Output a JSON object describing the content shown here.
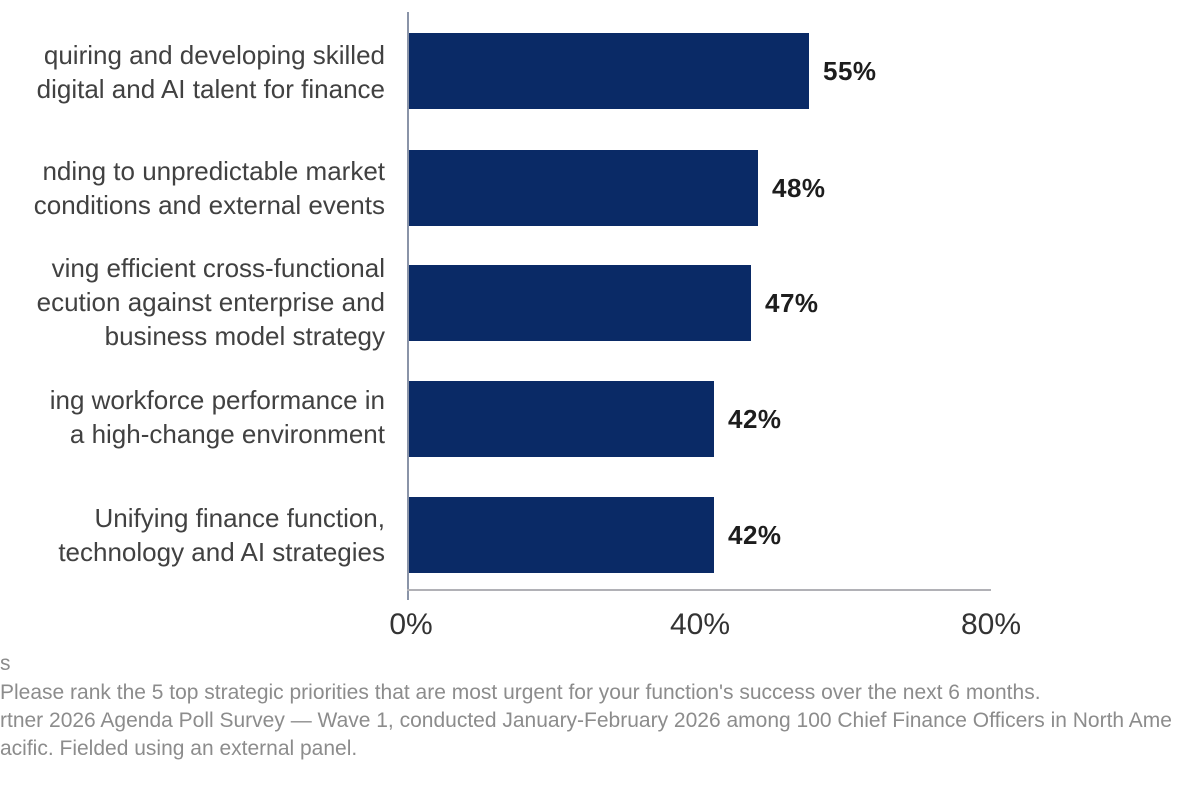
{
  "chart_data": {
    "type": "bar",
    "orientation": "horizontal",
    "title": "",
    "categories": [
      [
        "quiring and developing skilled",
        "digital and AI talent for finance"
      ],
      [
        "nding to unpredictable market",
        "conditions and external events"
      ],
      [
        "ving efficient cross-functional",
        "ecution against enterprise and",
        "business model strategy"
      ],
      [
        "ing workforce performance in",
        "a high-change environment"
      ],
      [
        "Unifying finance function,",
        "technology and AI strategies"
      ]
    ],
    "values": [
      55,
      48,
      47,
      42,
      42
    ],
    "value_labels": [
      "55%",
      "48%",
      "47%",
      "42%",
      "42%"
    ],
    "xlim": [
      0,
      80
    ],
    "x_tick_labels": [
      "0%",
      "40%",
      "80%"
    ],
    "x_tick_values": [
      0,
      40,
      80
    ],
    "grid": false,
    "legend": false,
    "bar_color": "#0a2a66",
    "axis_line_color": "#8a94a8",
    "baseline_color": "#b1b1b6",
    "value_label_color": "#1d1d1d",
    "category_label_color": "#414141",
    "footnote_color": "#8c8c8c"
  },
  "footnotes": {
    "line1": "s",
    "line2": "Please rank the 5 top strategic priorities that are most urgent for your function's success over the next 6 months.",
    "line3": "rtner 2026 Agenda Poll Survey — Wave 1, conducted January-February 2026 among 100 Chief Finance Officers in North Ame",
    "line4": "acific. Fielded using an external panel."
  }
}
